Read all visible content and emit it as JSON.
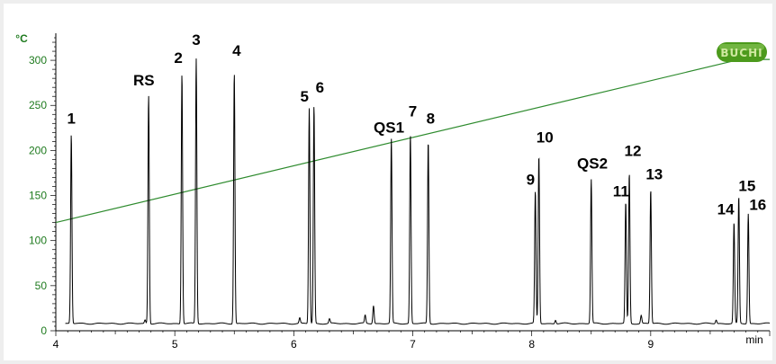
{
  "chart_data": {
    "type": "line",
    "title": "",
    "xlabel": "min",
    "ylabel": "°C",
    "xlim": [
      4,
      10
    ],
    "ylim": [
      0,
      330
    ],
    "x_ticks": [
      "4",
      "5",
      "6",
      "7",
      "8",
      "9"
    ],
    "y_ticks": [
      "0",
      "50",
      "100",
      "150",
      "200",
      "250",
      "300"
    ],
    "grid": false,
    "brand": "BUCHI",
    "colors": {
      "chromatogram": "#000000",
      "temperature": "#2e8b2e",
      "axis_text": "#1e7a1e",
      "logo": "#4c9a1c"
    },
    "series": [
      {
        "role": "temperature",
        "points": [
          [
            4.0,
            120
          ],
          [
            9.75,
            301
          ],
          [
            10.0,
            301
          ]
        ]
      },
      {
        "role": "chromatogram",
        "baseline": 8,
        "peaks": [
          {
            "label": "1",
            "x": 4.13,
            "height": 218
          },
          {
            "label": "RS",
            "x": 4.78,
            "height": 262
          },
          {
            "label": "2",
            "x": 5.06,
            "height": 286
          },
          {
            "label": "3",
            "x": 5.18,
            "height": 302
          },
          {
            "label": "4",
            "x": 5.5,
            "height": 287
          },
          {
            "label": "5",
            "x": 6.13,
            "height": 247
          },
          {
            "label": "6",
            "x": 6.17,
            "height": 250
          },
          {
            "label": "QS1",
            "x": 6.82,
            "height": 213
          },
          {
            "label": "7",
            "x": 6.98,
            "height": 218
          },
          {
            "label": "8",
            "x": 7.13,
            "height": 211
          },
          {
            "label": "9",
            "x": 8.03,
            "height": 155
          },
          {
            "label": "10",
            "x": 8.06,
            "height": 195
          },
          {
            "label": "QS2",
            "x": 8.5,
            "height": 168
          },
          {
            "label": "11",
            "x": 8.79,
            "height": 143
          },
          {
            "label": "12",
            "x": 8.82,
            "height": 175
          },
          {
            "label": "13",
            "x": 9.0,
            "height": 157
          },
          {
            "label": "14",
            "x": 9.7,
            "height": 120
          },
          {
            "label": "15",
            "x": 9.74,
            "height": 149
          },
          {
            "label": "16",
            "x": 9.82,
            "height": 130
          }
        ],
        "minor_peaks": [
          {
            "x": 4.75,
            "height": 12
          },
          {
            "x": 6.05,
            "height": 14
          },
          {
            "x": 6.3,
            "height": 13
          },
          {
            "x": 6.6,
            "height": 17
          },
          {
            "x": 6.67,
            "height": 28
          },
          {
            "x": 8.2,
            "height": 12
          },
          {
            "x": 8.92,
            "height": 17
          },
          {
            "x": 9.55,
            "height": 12
          }
        ]
      }
    ]
  }
}
